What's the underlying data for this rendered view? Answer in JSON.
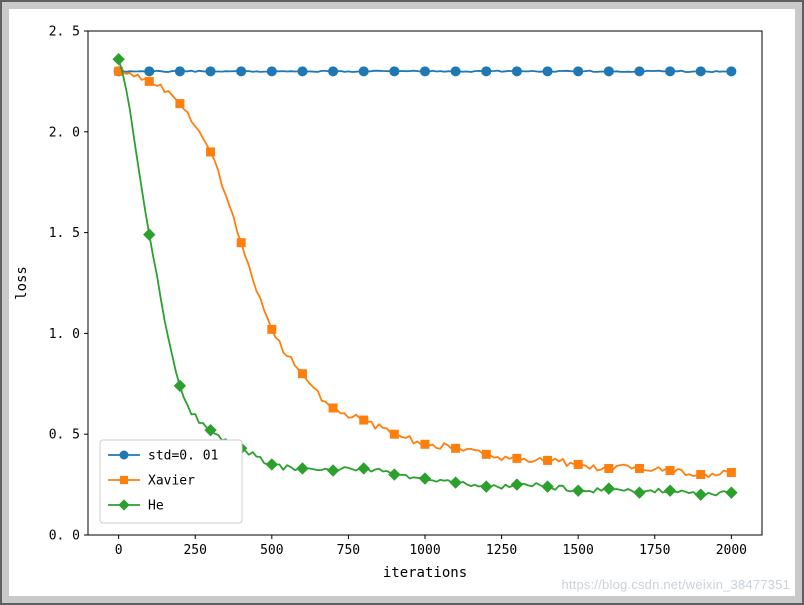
{
  "watermark": "https://blog.csdn.net/weixin_38477351",
  "chart_data": {
    "type": "line",
    "title": "",
    "xlabel": "iterations",
    "ylabel": "loss",
    "xlim": [
      -100,
      2100
    ],
    "ylim": [
      0,
      2.5
    ],
    "grid": false,
    "legend_position": "lower left",
    "x_ticks": [
      0,
      250,
      500,
      750,
      1000,
      1250,
      1500,
      1750,
      2000
    ],
    "x_tick_labels": [
      "0",
      "250",
      "500",
      "750",
      "1000",
      "1250",
      "1500",
      "1750",
      "2000"
    ],
    "y_ticks": [
      0,
      0.5,
      1.0,
      1.5,
      2.0,
      2.5
    ],
    "y_tick_labels": [
      "0. 0",
      "0. 5",
      "1. 0",
      "1. 5",
      "2. 0",
      "2. 5"
    ],
    "x": [
      0,
      100,
      200,
      300,
      400,
      500,
      600,
      700,
      800,
      900,
      1000,
      1100,
      1200,
      1300,
      1400,
      1500,
      1600,
      1700,
      1800,
      1900,
      2000
    ],
    "series": [
      {
        "name": "std=0. 01",
        "color": "#1f77b4",
        "marker": "circle",
        "noise": 0.004,
        "values": [
          2.3,
          2.3,
          2.3,
          2.3,
          2.3,
          2.3,
          2.3,
          2.3,
          2.3,
          2.3,
          2.3,
          2.3,
          2.3,
          2.3,
          2.3,
          2.3,
          2.3,
          2.3,
          2.3,
          2.3,
          2.3
        ]
      },
      {
        "name": "Xavier",
        "color": "#ff7f0e",
        "marker": "square",
        "noise": 0.02,
        "values": [
          2.3,
          2.25,
          2.14,
          1.9,
          1.45,
          1.02,
          0.8,
          0.63,
          0.57,
          0.5,
          0.45,
          0.43,
          0.4,
          0.38,
          0.37,
          0.35,
          0.33,
          0.33,
          0.32,
          0.3,
          0.31
        ]
      },
      {
        "name": "He",
        "color": "#2ca02c",
        "marker": "diamond",
        "noise": 0.016,
        "values": [
          2.36,
          1.49,
          0.74,
          0.52,
          0.43,
          0.35,
          0.33,
          0.32,
          0.33,
          0.3,
          0.28,
          0.26,
          0.24,
          0.25,
          0.24,
          0.22,
          0.23,
          0.21,
          0.22,
          0.2,
          0.21
        ]
      }
    ]
  }
}
